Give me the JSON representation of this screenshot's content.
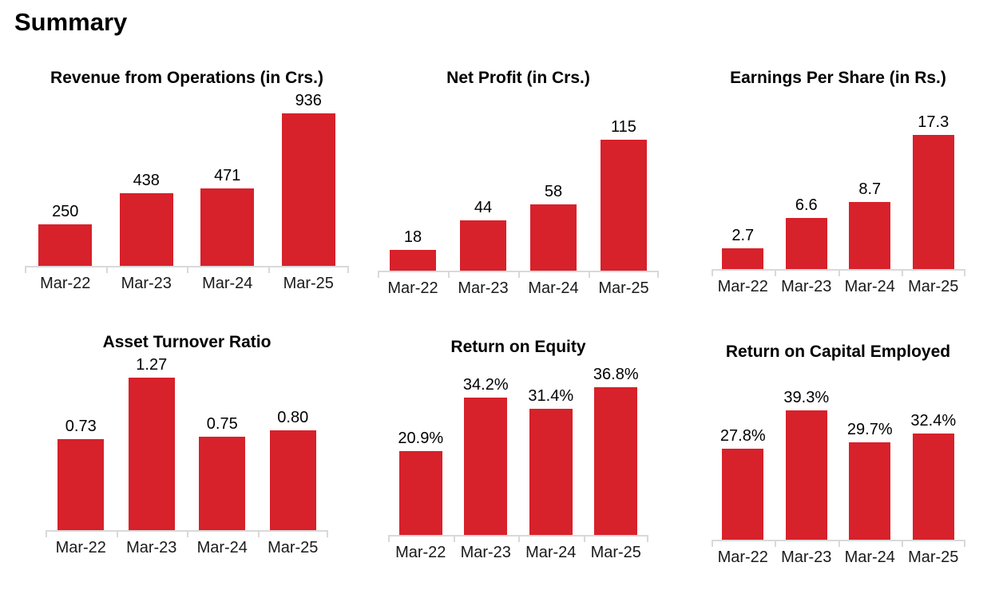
{
  "page": {
    "title": "Summary"
  },
  "theme": {
    "bar_color": "#d7212b",
    "axis_color": "#d9d9d9",
    "label_color": "#000000",
    "background": "#ffffff"
  },
  "chart_data": [
    {
      "type": "bar",
      "title": "Revenue from Operations (in Crs.)",
      "categories": [
        "Mar-22",
        "Mar-23",
        "Mar-24",
        "Mar-25"
      ],
      "values": [
        250,
        438,
        471,
        936
      ],
      "value_labels": [
        "250",
        "438",
        "471",
        "936"
      ],
      "ylim": [
        0,
        1050
      ],
      "xlabel": "",
      "ylabel": "",
      "grid": false,
      "legend": "none",
      "bar_color": "#d7212b"
    },
    {
      "type": "bar",
      "title": "Net Profit (in Crs.)",
      "categories": [
        "Mar-22",
        "Mar-23",
        "Mar-24",
        "Mar-25"
      ],
      "values": [
        18,
        44,
        58,
        115
      ],
      "value_labels": [
        "18",
        "44",
        "58",
        "115"
      ],
      "ylim": [
        0,
        152
      ],
      "xlabel": "",
      "ylabel": "",
      "grid": false,
      "legend": "none",
      "bar_color": "#d7212b"
    },
    {
      "type": "bar",
      "title": "Earnings Per Share (in Rs.)",
      "categories": [
        "Mar-22",
        "Mar-23",
        "Mar-24",
        "Mar-25"
      ],
      "values": [
        2.7,
        6.6,
        8.7,
        17.3
      ],
      "value_labels": [
        "2.7",
        "6.6",
        "8.7",
        "17.3"
      ],
      "ylim": [
        0,
        22.4
      ],
      "xlabel": "",
      "ylabel": "",
      "grid": false,
      "legend": "none",
      "bar_color": "#d7212b"
    },
    {
      "type": "bar",
      "title": "Asset Turnover Ratio",
      "categories": [
        "Mar-22",
        "Mar-23",
        "Mar-24",
        "Mar-25"
      ],
      "values": [
        0.73,
        1.27,
        0.75,
        0.8
      ],
      "value_labels": [
        "0.73",
        "1.27",
        "0.75",
        "0.80"
      ],
      "ylim": [
        0,
        1.39
      ],
      "xlabel": "",
      "ylabel": "",
      "grid": false,
      "legend": "none",
      "bar_color": "#d7212b"
    },
    {
      "type": "bar",
      "title": "Return on Equity",
      "categories": [
        "Mar-22",
        "Mar-23",
        "Mar-24",
        "Mar-25"
      ],
      "values": [
        20.9,
        34.2,
        31.4,
        36.8
      ],
      "value_labels": [
        "20.9%",
        "34.2%",
        "31.4%",
        "36.8%"
      ],
      "ylim": [
        0,
        43.2
      ],
      "xlabel": "",
      "ylabel": "",
      "grid": false,
      "legend": "none",
      "bar_color": "#d7212b"
    },
    {
      "type": "bar",
      "title": "Return on Capital Employed",
      "categories": [
        "Mar-22",
        "Mar-23",
        "Mar-24",
        "Mar-25"
      ],
      "values": [
        27.8,
        39.3,
        29.7,
        32.4
      ],
      "value_labels": [
        "27.8%",
        "39.3%",
        "29.7%",
        "32.4%"
      ],
      "ylim": [
        0,
        52.8
      ],
      "xlabel": "",
      "ylabel": "",
      "grid": false,
      "legend": "none",
      "bar_color": "#d7212b"
    }
  ]
}
